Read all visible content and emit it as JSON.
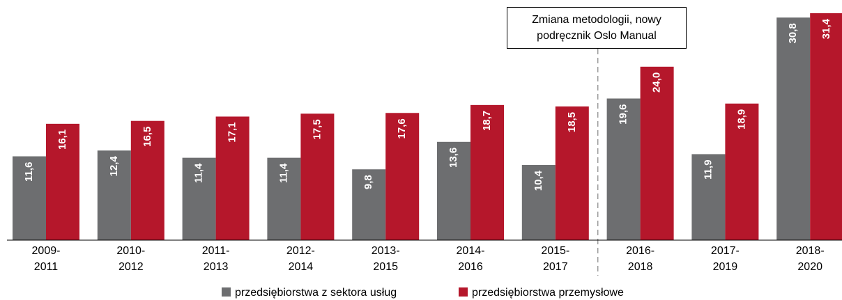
{
  "chart_data": {
    "type": "bar",
    "categories": [
      "2009-\n2011",
      "2010-\n2012",
      "2011-\n2013",
      "2012-\n2014",
      "2013-\n2015",
      "2014-\n2016",
      "2015-\n2017",
      "2016-\n2018",
      "2017-\n2019",
      "2018-\n2020"
    ],
    "series": [
      {
        "name": "przedsiębiorstwa z sektora usług",
        "color": "#6d6e70",
        "values": [
          11.6,
          12.4,
          11.4,
          11.4,
          9.8,
          13.6,
          10.4,
          19.6,
          11.9,
          30.8
        ],
        "value_labels": [
          "11,6",
          "12,4",
          "11,4",
          "11,4",
          "9,8",
          "13,6",
          "10,4",
          "19,6",
          "11,9",
          "30,8"
        ]
      },
      {
        "name": "przedsiębiorstwa przemysłowe",
        "color": "#b5172b",
        "values": [
          16.1,
          16.5,
          17.1,
          17.5,
          17.6,
          18.7,
          18.5,
          24.0,
          18.9,
          31.4
        ],
        "value_labels": [
          "16,1",
          "16,5",
          "17,1",
          "17,5",
          "17,6",
          "18,7",
          "18,5",
          "24,0",
          "18,9",
          "31,4"
        ]
      }
    ],
    "annotation": "Zmiana metodologii, nowy\npodręcznik Oslo Manual",
    "legend": "bottom"
  }
}
